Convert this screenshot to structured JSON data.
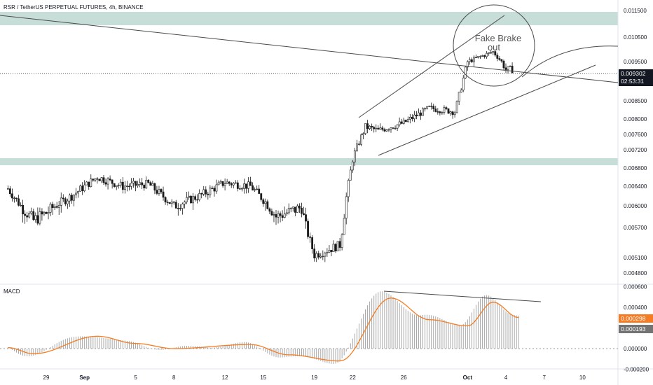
{
  "header": {
    "symbol_title": "RSR / TetherUS PERPETUAL FUTURES, 4h, BINANCE"
  },
  "price_axis": {
    "ticks": [
      "0.011500",
      "0.010500",
      "0.009500",
      "0.008500",
      "0.008000",
      "0.007600",
      "0.007200",
      "0.006800",
      "0.006400",
      "0.006000",
      "0.005700",
      "0.005100",
      "0.004800"
    ],
    "last_price": "0.009302",
    "countdown": "02:53:31",
    "colors": {
      "last_price_bg": "#131722",
      "label_text": "#ffffff"
    }
  },
  "annotation": {
    "line1": "Fake Brake",
    "line2": "out"
  },
  "macd": {
    "title": "MACD",
    "ticks": [
      "0.000600",
      "0.000400",
      "0.000000",
      "-0.000200"
    ],
    "signal_value": "0.000298",
    "macd_value": "0.000193",
    "colors": {
      "signal": "#f57c22",
      "histogram": "#9e9e9e",
      "macd_badge": "#737373"
    }
  },
  "time_axis": {
    "labels": [
      "29",
      "Sep",
      "5",
      "8",
      "12",
      "15",
      "19",
      "22",
      "26",
      "Oct",
      "4",
      "7",
      "10"
    ]
  },
  "chart_data": [
    {
      "type": "candlestick",
      "title": "RSR / TetherUS PERPETUAL FUTURES, 4h, BINANCE",
      "timeframe": "4h",
      "x_range": [
        "Aug 26",
        "Oct 11"
      ],
      "ylim": [
        0.0046,
        0.0118
      ],
      "close_path": [
        {
          "date": "Aug 26",
          "close": 0.00635
        },
        {
          "date": "Aug 27",
          "close": 0.006
        },
        {
          "date": "Aug 28",
          "close": 0.0058
        },
        {
          "date": "Aug 29",
          "close": 0.0059
        },
        {
          "date": "Aug 31",
          "close": 0.0062
        },
        {
          "date": "Sep 2",
          "close": 0.0066
        },
        {
          "date": "Sep 4",
          "close": 0.0064
        },
        {
          "date": "Sep 6",
          "close": 0.00645
        },
        {
          "date": "Sep 8",
          "close": 0.006
        },
        {
          "date": "Sep 10",
          "close": 0.0062
        },
        {
          "date": "Sep 12",
          "close": 0.00648
        },
        {
          "date": "Sep 14",
          "close": 0.0064
        },
        {
          "date": "Sep 16",
          "close": 0.00585
        },
        {
          "date": "Sep 18",
          "close": 0.00598
        },
        {
          "date": "Sep 19",
          "close": 0.00515
        },
        {
          "date": "Sep 21",
          "close": 0.00535
        },
        {
          "date": "Sep 22",
          "close": 0.007
        },
        {
          "date": "Sep 23",
          "close": 0.0078
        },
        {
          "date": "Sep 24",
          "close": 0.0077
        },
        {
          "date": "Sep 26",
          "close": 0.0079
        },
        {
          "date": "Sep 28",
          "close": 0.0083
        },
        {
          "date": "Sep 30",
          "close": 0.0082
        },
        {
          "date": "Oct 1",
          "close": 0.0095
        },
        {
          "date": "Oct 3",
          "close": 0.0099
        },
        {
          "date": "Oct 4",
          "close": 0.0093
        }
      ],
      "last_price": 0.009302,
      "zones": [
        {
          "name": "resistance zone",
          "from": 0.011,
          "to": 0.0113
        },
        {
          "name": "support zone",
          "from": 0.00685,
          "to": 0.007
        }
      ],
      "annotations": [
        "Fake Brake",
        "out"
      ]
    },
    {
      "type": "bar",
      "title": "MACD",
      "ylim": [
        -0.00025,
        0.00065
      ],
      "last_histogram": 0.000193,
      "last_signal": 0.000298,
      "signal_path": [
        {
          "date": "Aug 26",
          "value": 1e-05
        },
        {
          "date": "Aug 28",
          "value": -5e-05
        },
        {
          "date": "Sep 2",
          "value": 0.00012
        },
        {
          "date": "Sep 5",
          "value": 5e-05
        },
        {
          "date": "Sep 8",
          "value": 0.0
        },
        {
          "date": "Sep 14",
          "value": 4e-05
        },
        {
          "date": "Sep 17",
          "value": -6e-05
        },
        {
          "date": "Sep 21",
          "value": -0.00012
        },
        {
          "date": "Sep 25",
          "value": 0.00049
        },
        {
          "date": "Sep 28",
          "value": 0.00028
        },
        {
          "date": "Oct 1",
          "value": 0.00022
        },
        {
          "date": "Oct 3",
          "value": 0.00045
        },
        {
          "date": "Oct 5",
          "value": 0.0003
        }
      ]
    }
  ]
}
